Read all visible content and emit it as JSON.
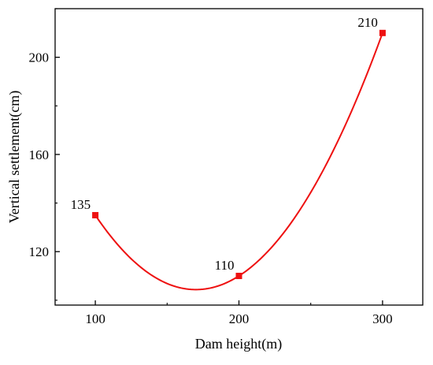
{
  "chart_data": {
    "type": "line",
    "title": "",
    "xlabel": "Dam height(m)",
    "ylabel": "Vertical settlement(cm)",
    "x": [
      100,
      200,
      300
    ],
    "series": [
      {
        "values": [
          135,
          110,
          210
        ],
        "labels": [
          "135",
          "110",
          "210"
        ]
      }
    ],
    "smooth": true,
    "marker": "square",
    "xlim": [
      72,
      328
    ],
    "ylim": [
      98,
      220
    ],
    "xticks": [
      100,
      200,
      300
    ],
    "xtick_labels": [
      "100",
      "200",
      "300"
    ],
    "yticks": [
      120,
      160,
      200
    ],
    "ytick_labels": [
      "120",
      "160",
      "200"
    ],
    "grid": false,
    "legend": "none",
    "colors": {
      "series": "#ee1111",
      "axis": "#000000"
    }
  }
}
